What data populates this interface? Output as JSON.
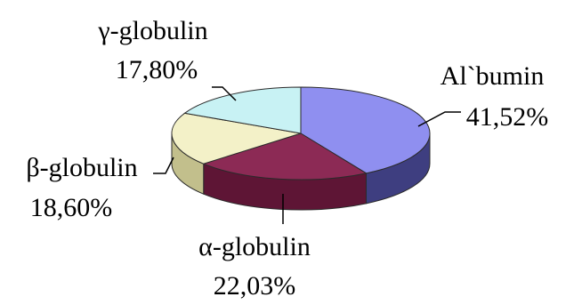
{
  "chart_data": {
    "type": "pie",
    "title": "",
    "legend": "none",
    "series": [
      {
        "name": "Al`bumin",
        "value": 41.52,
        "label": "41,52%",
        "color": "#8F8FF0",
        "side_color": "#3E3E80"
      },
      {
        "name": "α-globulin",
        "value": 22.03,
        "label": "22,03%",
        "color": "#8C2A55",
        "side_color": "#5E1535"
      },
      {
        "name": "β-globulin",
        "value": 18.6,
        "label": "18,60%",
        "color": "#F3F1C8",
        "side_color": "#C2BF8C"
      },
      {
        "name": "γ-globulin",
        "value": 17.8,
        "label": "17,80%",
        "color": "#C8F2F4",
        "side_color": "#8AB8BB"
      }
    ]
  }
}
